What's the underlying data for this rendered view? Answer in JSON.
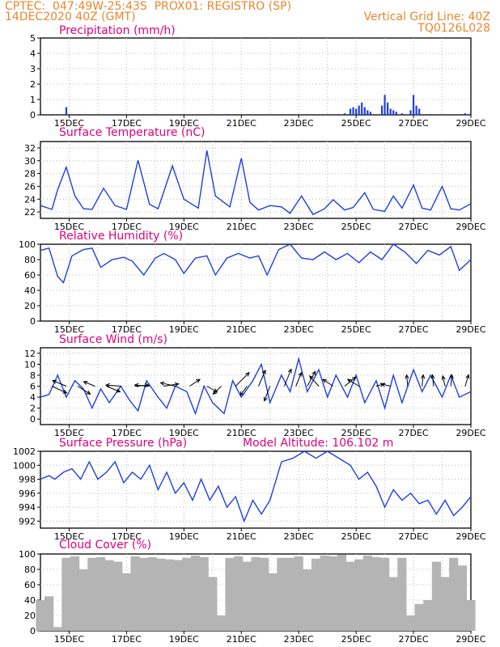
{
  "header": {
    "left_line1": "CPTEC:  047:49W-25:43S  PROX01: REGISTRO (SP)",
    "left_line2": "14DEC2020 40Z (GMT)",
    "right_line1": "Vertical Grid Line: 40Z",
    "right_line2": "TQ0126L028",
    "header_color": "#e8862e"
  },
  "colors": {
    "title": "#e0007a",
    "line": "#1f3fe0",
    "bar": "#1f3fe0",
    "cloud": "#b4b4b4",
    "grid": "#b8b8b8",
    "arrow": "#000000"
  },
  "chart_data": [
    {
      "type": "bar",
      "title": "Precipitation (mm/h)",
      "xlabel": "",
      "ylabel": "",
      "xticks": [
        "15DEC",
        "17DEC",
        "19DEC",
        "21DEC",
        "23DEC",
        "25DEC",
        "27DEC",
        "29DEC"
      ],
      "xlim": [
        0,
        15
      ],
      "ylim": [
        0,
        5
      ],
      "yticks": [
        0,
        1,
        2,
        3,
        4,
        5
      ],
      "series": [
        {
          "x": [
            0.9,
            4.0,
            6.5,
            10.4,
            10.6,
            10.8,
            10.9,
            11.0,
            11.1,
            11.2,
            11.3,
            11.4,
            11.5,
            11.9,
            12.0,
            12.1,
            12.2,
            12.3,
            12.4,
            12.6,
            12.9,
            13.0,
            13.1,
            13.2,
            14.8
          ],
          "values": [
            0.5,
            0.05,
            0.05,
            0.05,
            0.1,
            0.4,
            0.5,
            0.4,
            0.6,
            0.8,
            0.5,
            0.3,
            0.2,
            0.6,
            1.3,
            0.8,
            0.4,
            0.3,
            0.2,
            0.1,
            0.3,
            1.3,
            0.6,
            0.4,
            0.1
          ]
        }
      ]
    },
    {
      "type": "line",
      "title": "Surface Temperature (nC)",
      "xlabel": "",
      "ylabel": "",
      "xticks": [
        "15DEC",
        "17DEC",
        "19DEC",
        "21DEC",
        "23DEC",
        "25DEC",
        "27DEC",
        "29DEC"
      ],
      "xlim": [
        0,
        15
      ],
      "ylim": [
        21,
        33
      ],
      "yticks": [
        22,
        24,
        26,
        28,
        30,
        32
      ],
      "series": [
        {
          "x": [
            0,
            0.4,
            0.6,
            0.9,
            1.2,
            1.5,
            1.8,
            2.2,
            2.6,
            3.0,
            3.4,
            3.8,
            4.1,
            4.6,
            5.0,
            5.5,
            5.8,
            6.1,
            6.6,
            7.0,
            7.3,
            7.6,
            8.0,
            8.4,
            8.7,
            9.1,
            9.5,
            9.9,
            10.2,
            10.6,
            10.9,
            11.3,
            11.6,
            12.0,
            12.3,
            12.6,
            13.0,
            13.3,
            13.6,
            14.0,
            14.3,
            14.6,
            15.0
          ],
          "values": [
            23,
            22.4,
            25.5,
            29,
            24.5,
            22.5,
            22.4,
            25.7,
            23,
            22.4,
            30.1,
            23.2,
            22.5,
            29.2,
            24,
            22.6,
            31.6,
            24.5,
            22.8,
            30.4,
            23.5,
            22.3,
            23,
            22.8,
            21.8,
            24.5,
            21.6,
            22.5,
            23.9,
            22.3,
            22.7,
            25,
            22.4,
            22.1,
            24.5,
            22.6,
            26.2,
            22.6,
            22.3,
            26,
            22.5,
            22.3,
            23.3
          ]
        }
      ]
    },
    {
      "type": "line",
      "title": "Relative Humidity (%)",
      "xlabel": "",
      "ylabel": "",
      "xticks": [
        "15DEC",
        "17DEC",
        "19DEC",
        "21DEC",
        "23DEC",
        "25DEC",
        "27DEC",
        "29DEC"
      ],
      "xlim": [
        0,
        15
      ],
      "ylim": [
        0,
        100
      ],
      "yticks": [
        0,
        20,
        40,
        60,
        80,
        100
      ],
      "series": [
        {
          "x": [
            0,
            0.3,
            0.6,
            0.8,
            1.1,
            1.5,
            1.8,
            2.1,
            2.5,
            2.9,
            3.2,
            3.6,
            4.0,
            4.3,
            4.7,
            5.0,
            5.4,
            5.8,
            6.1,
            6.5,
            6.9,
            7.3,
            7.6,
            7.9,
            8.3,
            8.7,
            9.1,
            9.5,
            9.9,
            10.3,
            10.7,
            11.1,
            11.5,
            11.9,
            12.3,
            12.7,
            13.1,
            13.5,
            13.9,
            14.3,
            14.6,
            15.0
          ],
          "values": [
            92,
            95,
            58,
            50,
            85,
            93,
            95,
            70,
            80,
            83,
            78,
            60,
            82,
            88,
            80,
            62,
            82,
            85,
            60,
            82,
            88,
            82,
            85,
            60,
            93,
            100,
            82,
            80,
            90,
            80,
            88,
            76,
            90,
            80,
            100,
            90,
            75,
            92,
            86,
            97,
            66,
            80
          ]
        }
      ]
    },
    {
      "type": "line",
      "title": "Surface Wind (m/s)",
      "xlabel": "",
      "ylabel": "",
      "xticks": [
        "15DEC",
        "17DEC",
        "19DEC",
        "21DEC",
        "23DEC",
        "25DEC",
        "27DEC",
        "29DEC"
      ],
      "xlim": [
        0,
        15
      ],
      "ylim": [
        -1,
        13
      ],
      "yticks": [
        0,
        2,
        4,
        6,
        8,
        10,
        12
      ],
      "series": [
        {
          "x": [
            0,
            0.3,
            0.6,
            0.9,
            1.2,
            1.5,
            1.8,
            2.1,
            2.4,
            2.8,
            3.1,
            3.4,
            3.7,
            4.1,
            4.4,
            4.7,
            5.1,
            5.4,
            5.7,
            6.0,
            6.4,
            6.7,
            7.0,
            7.4,
            7.7,
            8.0,
            8.4,
            8.7,
            9.0,
            9.3,
            9.7,
            10.0,
            10.3,
            10.7,
            11.0,
            11.3,
            11.7,
            12.0,
            12.3,
            12.6,
            13.0,
            13.3,
            13.6,
            14.0,
            14.3,
            14.6,
            15.0
          ],
          "values": [
            4,
            4.5,
            8,
            4,
            7,
            5.5,
            2,
            5.5,
            3,
            6,
            3.5,
            1.5,
            7,
            4,
            2,
            6,
            5,
            1,
            6,
            3,
            1,
            7,
            4,
            7,
            10,
            3,
            8,
            5,
            11,
            5,
            9,
            4,
            8,
            4,
            8,
            3,
            7,
            2,
            8,
            3,
            9,
            5,
            8,
            4,
            8,
            4,
            5
          ]
        }
      ]
    },
    {
      "type": "line",
      "title": "Surface Pressure (hPa)",
      "annotation": "Model Altitude: 106.102 m",
      "xlabel": "",
      "ylabel": "",
      "xticks": [
        "15DEC",
        "17DEC",
        "19DEC",
        "21DEC",
        "23DEC",
        "25DEC",
        "27DEC",
        "29DEC"
      ],
      "xlim": [
        0,
        15
      ],
      "ylim": [
        991,
        1002
      ],
      "yticks": [
        992,
        994,
        996,
        998,
        1000,
        1002
      ],
      "series": [
        {
          "x": [
            0,
            0.3,
            0.5,
            0.8,
            1.1,
            1.4,
            1.7,
            2.0,
            2.3,
            2.6,
            2.9,
            3.2,
            3.5,
            3.8,
            4.1,
            4.4,
            4.7,
            5.0,
            5.3,
            5.6,
            5.9,
            6.2,
            6.5,
            6.8,
            7.1,
            7.4,
            7.7,
            8.0,
            8.4,
            8.8,
            9.2,
            9.6,
            10.0,
            10.4,
            10.8,
            11.1,
            11.4,
            11.7,
            12.0,
            12.3,
            12.6,
            12.9,
            13.2,
            13.5,
            13.8,
            14.1,
            14.4,
            14.7,
            15.0
          ],
          "values": [
            998,
            998.5,
            998,
            999,
            999.5,
            998,
            1000.5,
            998,
            999,
            1000.5,
            997.5,
            999,
            998,
            1000,
            996.5,
            999,
            996,
            997.5,
            995,
            998,
            995,
            997,
            994,
            995.5,
            992,
            995,
            993,
            995,
            1000.5,
            1001,
            1002,
            1001,
            1002,
            1001,
            1000,
            998,
            999,
            997,
            994,
            996.5,
            995,
            996,
            994.5,
            995,
            993,
            995,
            992.8,
            994,
            995.5
          ]
        }
      ]
    },
    {
      "type": "bar",
      "title": "Cloud Cover (%)",
      "xlabel": "",
      "ylabel": "",
      "xticks": [
        "15DEC",
        "17DEC",
        "19DEC",
        "21DEC",
        "23DEC",
        "25DEC",
        "27DEC",
        "29DEC"
      ],
      "xlim": [
        0,
        15
      ],
      "ylim": [
        0,
        100
      ],
      "yticks": [
        0,
        20,
        40,
        60,
        80,
        100
      ],
      "series": [
        {
          "x": [
            0.0,
            0.3,
            0.6,
            0.9,
            1.2,
            1.5,
            1.8,
            2.1,
            2.4,
            2.7,
            3.0,
            3.3,
            3.6,
            3.9,
            4.2,
            4.5,
            4.8,
            5.1,
            5.4,
            5.7,
            6.0,
            6.3,
            6.6,
            6.9,
            7.2,
            7.5,
            7.8,
            8.1,
            8.4,
            8.7,
            9.0,
            9.3,
            9.6,
            9.9,
            10.2,
            10.5,
            10.8,
            11.1,
            11.4,
            11.7,
            12.0,
            12.3,
            12.6,
            12.9,
            13.2,
            13.5,
            13.8,
            14.1,
            14.4,
            14.7,
            15.0
          ],
          "values": [
            40,
            45,
            5,
            95,
            97,
            80,
            95,
            96,
            92,
            90,
            75,
            97,
            95,
            96,
            94,
            93,
            92,
            95,
            98,
            96,
            70,
            20,
            95,
            97,
            90,
            96,
            95,
            75,
            95,
            95,
            97,
            80,
            94,
            98,
            97,
            99,
            90,
            93,
            98,
            96,
            95,
            70,
            95,
            20,
            35,
            40,
            90,
            70,
            95,
            85,
            40
          ]
        }
      ]
    }
  ],
  "wind_arrows": [
    {
      "x": 0.4,
      "u": 1.3,
      "v": -0.6
    },
    {
      "x": 0.9,
      "u": -1.2,
      "v": 0.5
    },
    {
      "x": 1.3,
      "u": 1.1,
      "v": -0.7
    },
    {
      "x": 1.9,
      "u": -1.0,
      "v": 0.4
    },
    {
      "x": 2.3,
      "u": 1.2,
      "v": -0.5
    },
    {
      "x": 2.8,
      "u": -1.3,
      "v": 0.1
    },
    {
      "x": 3.3,
      "u": 1.2,
      "v": 0.1
    },
    {
      "x": 3.8,
      "u": -1.3,
      "v": 0.1
    },
    {
      "x": 4.3,
      "u": 1.3,
      "v": 0.2
    },
    {
      "x": 4.7,
      "u": -1.3,
      "v": 0.3
    },
    {
      "x": 5.2,
      "u": 0.9,
      "v": 0.6
    },
    {
      "x": 5.8,
      "u": 0.9,
      "v": -0.5
    },
    {
      "x": 6.3,
      "u": -0.7,
      "v": -0.7
    },
    {
      "x": 6.8,
      "u": 1.2,
      "v": 1.2
    },
    {
      "x": 7.2,
      "u": -0.6,
      "v": -0.8
    },
    {
      "x": 7.6,
      "u": 0.6,
      "v": 1.4
    },
    {
      "x": 8.0,
      "u": -0.5,
      "v": -1.3
    },
    {
      "x": 8.5,
      "u": 0.6,
      "v": 1.5
    },
    {
      "x": 8.9,
      "u": 0.5,
      "v": 1.2
    },
    {
      "x": 9.3,
      "u": 0.7,
      "v": 1.3
    },
    {
      "x": 9.7,
      "u": -0.8,
      "v": 0.9
    },
    {
      "x": 10.2,
      "u": -0.9,
      "v": 0.6
    },
    {
      "x": 10.6,
      "u": 1.0,
      "v": 0.8
    },
    {
      "x": 11.1,
      "u": -1.0,
      "v": 0.6
    },
    {
      "x": 11.7,
      "u": 0.7,
      "v": 0.2
    },
    {
      "x": 12.2,
      "u": -0.8,
      "v": 0.2
    },
    {
      "x": 12.8,
      "u": -0.1,
      "v": 1.0
    },
    {
      "x": 13.3,
      "u": 0.1,
      "v": 1.0
    },
    {
      "x": 13.7,
      "u": -0.1,
      "v": 1.0
    },
    {
      "x": 14.1,
      "u": -0.2,
      "v": 0.9
    },
    {
      "x": 14.3,
      "u": 0.1,
      "v": 1.0
    },
    {
      "x": 14.8,
      "u": 0.3,
      "v": 1.0
    }
  ]
}
